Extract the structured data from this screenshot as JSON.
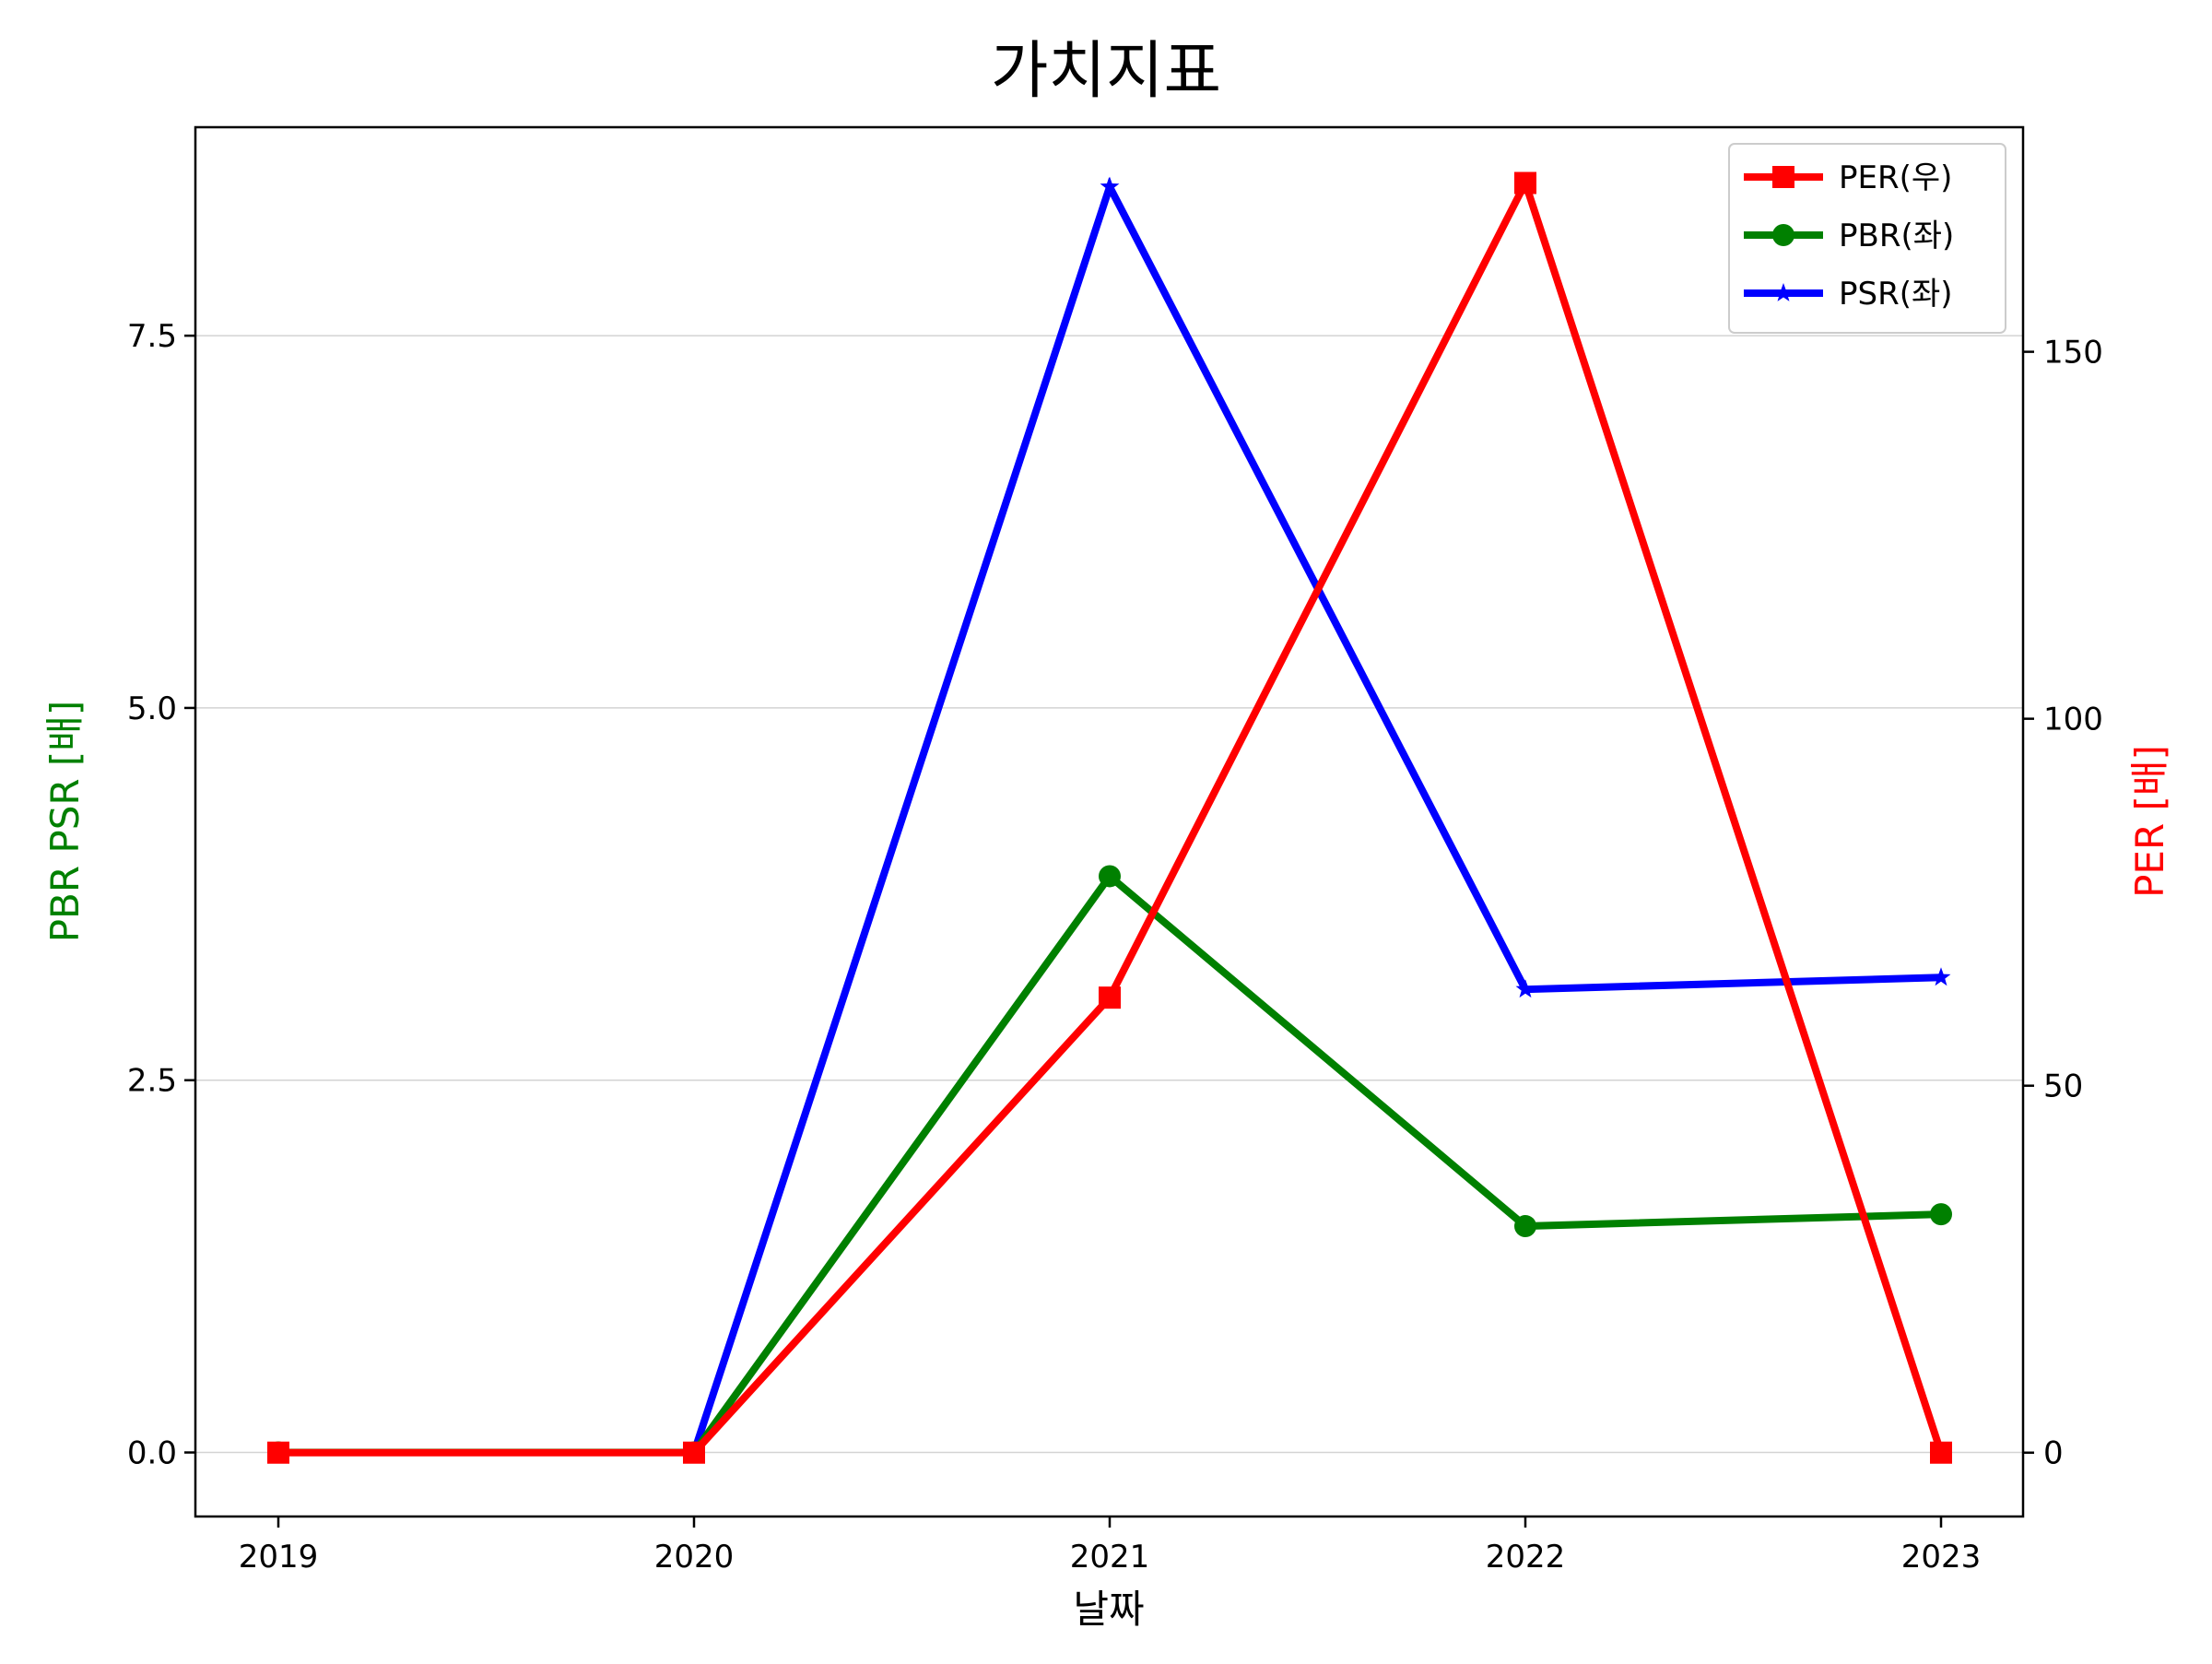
{
  "chart_data": {
    "type": "line",
    "title": "가치지표",
    "xlabel": "날짜",
    "ylabel_left": "PBR PSR [배]",
    "ylabel_right": "PER [배]",
    "categories": [
      "2019",
      "2020",
      "2021",
      "2022",
      "2023"
    ],
    "left_axis": {
      "ylim": [
        -0.43,
        8.9
      ],
      "ticks": [
        0.0,
        2.5,
        5.0,
        7.5
      ],
      "tick_labels": [
        "0.0",
        "2.5",
        "5.0",
        "7.5"
      ],
      "grid": true
    },
    "right_axis": {
      "ylim": [
        -8.7,
        180.6
      ],
      "ticks": [
        0,
        50,
        100,
        150
      ],
      "tick_labels": [
        "0",
        "50",
        "100",
        "150"
      ]
    },
    "series": [
      {
        "name": "PER(우)",
        "axis": "right",
        "color": "#ff0000",
        "marker": "square",
        "values": [
          0,
          0,
          62,
          173,
          0
        ]
      },
      {
        "name": "PBR(좌)",
        "axis": "left",
        "color": "#008000",
        "marker": "circle",
        "values": [
          0.0,
          0.0,
          3.87,
          1.52,
          1.6
        ]
      },
      {
        "name": "PSR(좌)",
        "axis": "left",
        "color": "#0000ff",
        "marker": "star",
        "values": [
          0.0,
          0.0,
          8.5,
          3.11,
          3.19
        ]
      }
    ],
    "legend_placement": "top-right",
    "colors": {
      "left_label": "#008000",
      "right_label": "#ff0000",
      "grid": "#d3d3d3"
    }
  }
}
